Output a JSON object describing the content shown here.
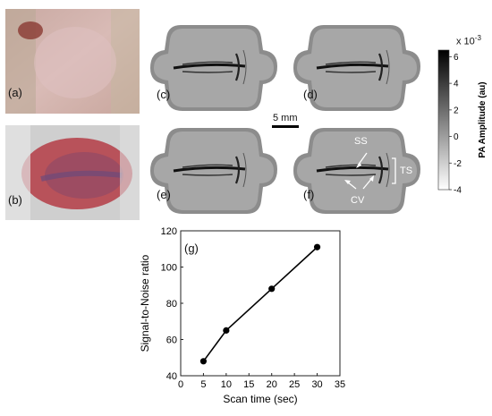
{
  "panels": {
    "a": "(a)",
    "b": "(b)",
    "c": "(c)",
    "d": "(d)",
    "e": "(e)",
    "f": "(f)",
    "g": "(g)"
  },
  "scale_bar": "5 mm",
  "annotations": {
    "ss": "SS",
    "ts": "TS",
    "cv": "CV"
  },
  "colorbar": {
    "exponent": "x 10",
    "exponent_power": "-3",
    "label": "PA Amplitude (au)",
    "ticks": [
      "6",
      "4",
      "2",
      "0",
      "-2",
      "-4"
    ],
    "range": [
      -4,
      6.5
    ]
  },
  "chart_data": {
    "type": "line",
    "xlabel": "Scan time (sec)",
    "ylabel": "Signal-to-Noise ratio",
    "x": [
      5,
      10,
      20,
      30
    ],
    "y": [
      48,
      65,
      88,
      111
    ],
    "xlim": [
      0,
      35
    ],
    "ylim": [
      40,
      120
    ],
    "xticks": [
      0,
      5,
      10,
      15,
      20,
      25,
      30,
      35
    ],
    "yticks": [
      40,
      60,
      80,
      100,
      120
    ],
    "grid": false
  }
}
